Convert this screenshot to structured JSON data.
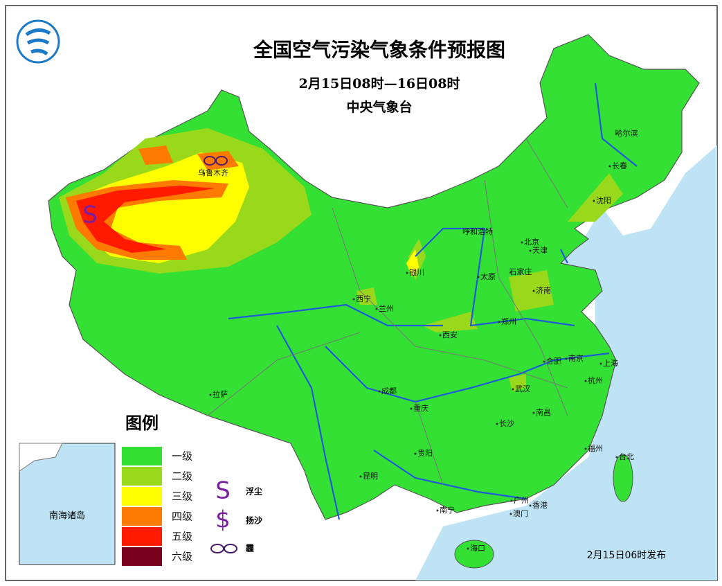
{
  "header": {
    "title": "全国空气污染气象条件预报图",
    "period": "2月15日08时—16日08时",
    "issuer": "中央气象台"
  },
  "cities": [
    "乌鲁木齐",
    "哈尔滨",
    "长春",
    "沈阳",
    "呼和浩特",
    "北京",
    "天津",
    "石家庄",
    "太原",
    "济南",
    "银川",
    "西宁",
    "兰州",
    "西安",
    "郑州",
    "合肥",
    "南京",
    "上海",
    "杭州",
    "武汉",
    "成都",
    "重庆",
    "拉萨",
    "长沙",
    "南昌",
    "贵阳",
    "福州",
    "台北",
    "昆明",
    "南宁",
    "广州",
    "香港",
    "澳门",
    "海口"
  ],
  "legend": {
    "title": "图例",
    "levels": [
      {
        "label": "一级",
        "color": "#33e033"
      },
      {
        "label": "二级",
        "color": "#99d81a"
      },
      {
        "label": "三级",
        "color": "#ffff00"
      },
      {
        "label": "四级",
        "color": "#ff7a00"
      },
      {
        "label": "五级",
        "color": "#ff1a00"
      },
      {
        "label": "六级",
        "color": "#7a0020"
      }
    ],
    "symbols": [
      {
        "symbol": "S",
        "label": "浮尘"
      },
      {
        "symbol": "$",
        "label": "扬沙"
      },
      {
        "label": "霾"
      }
    ]
  },
  "inset": {
    "label": "南海诸岛"
  },
  "footer": {
    "issued": "2月15日06时发布"
  }
}
